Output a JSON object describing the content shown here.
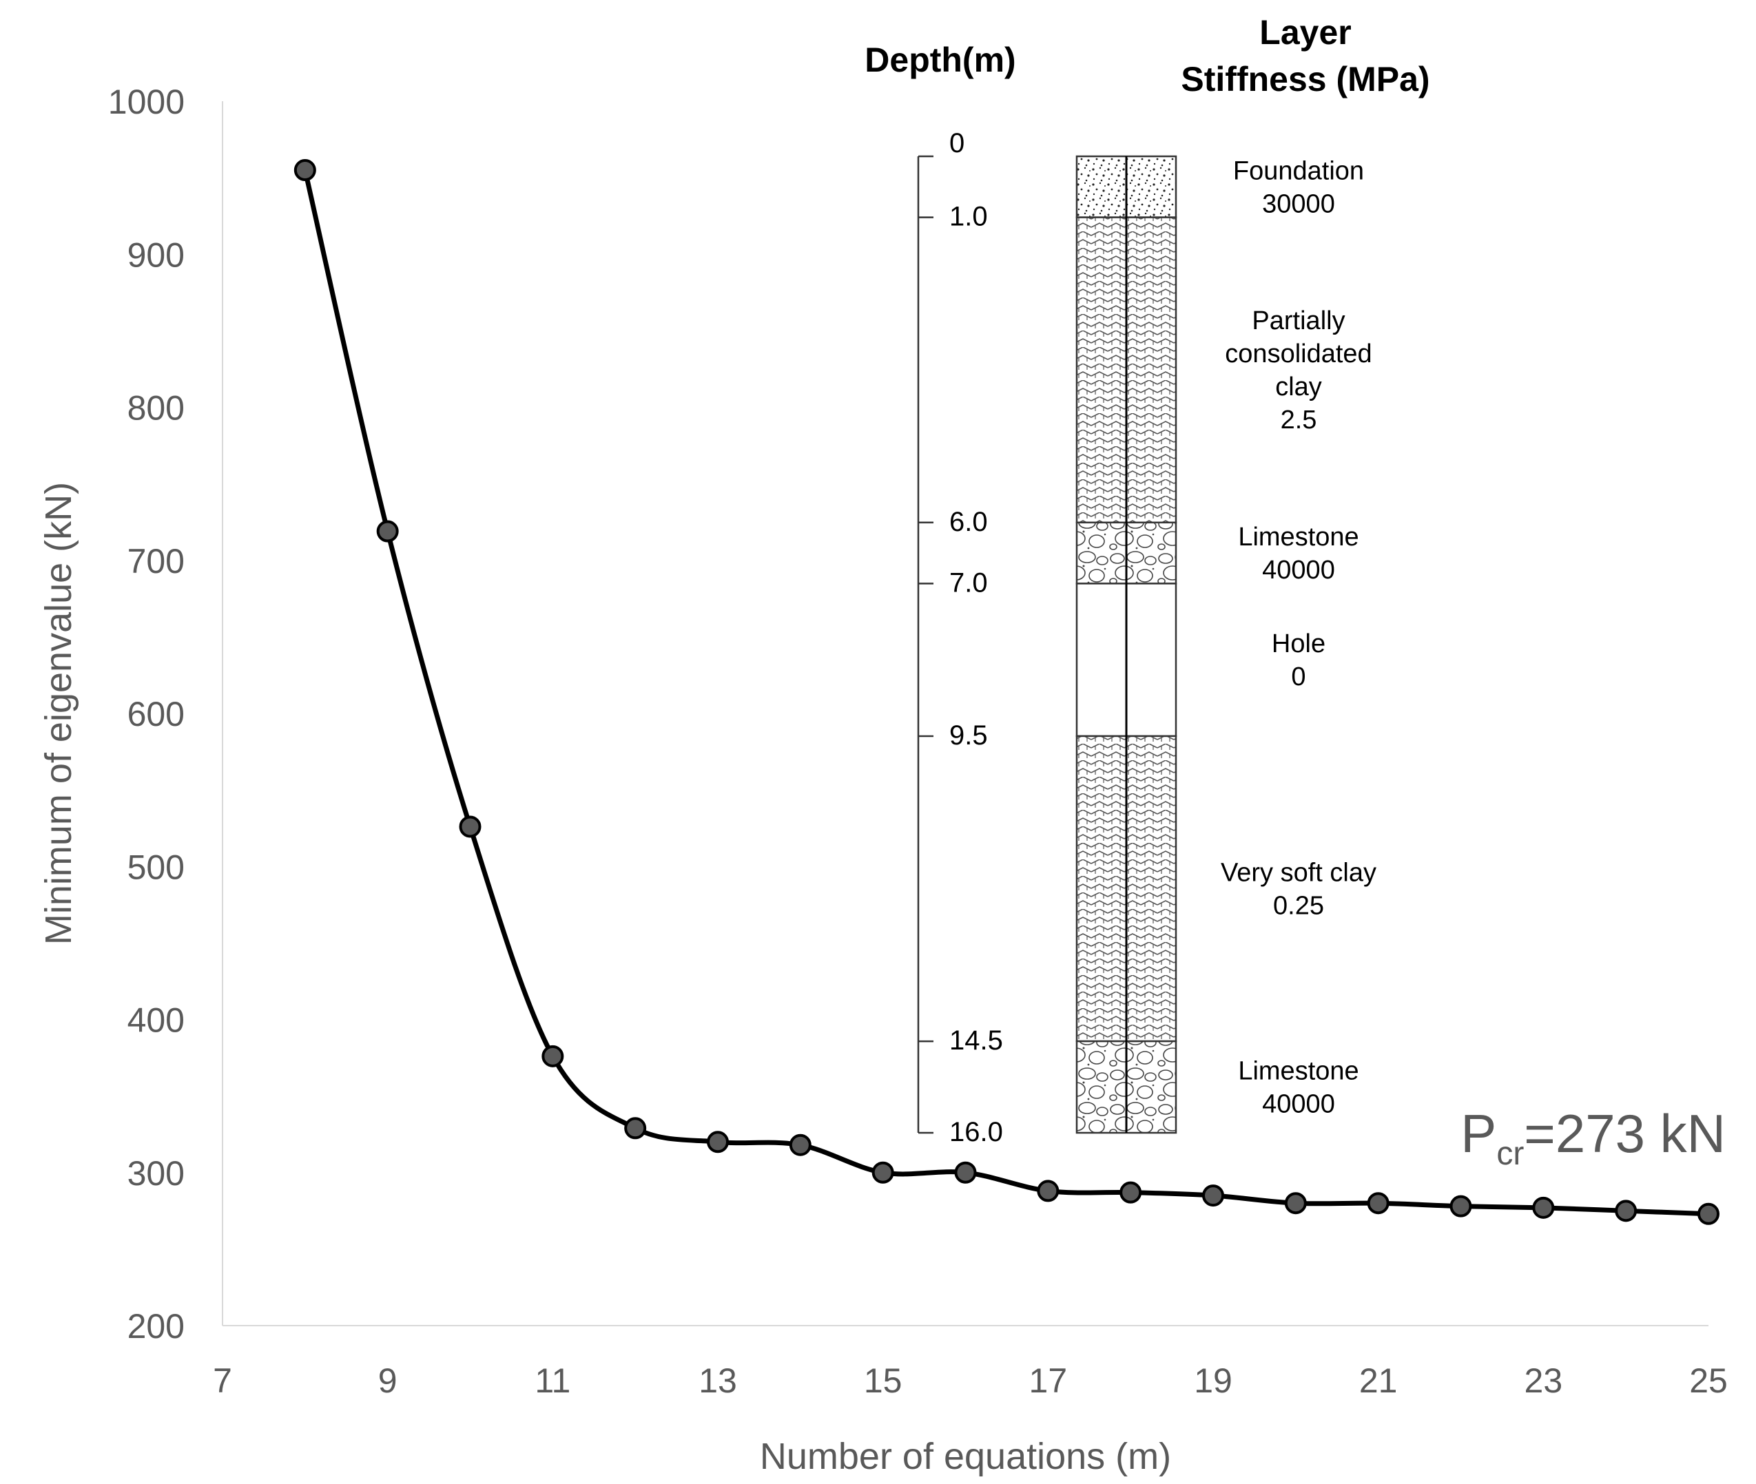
{
  "chart_data": {
    "type": "line",
    "title": "",
    "xlabel": "Number of equations (m)",
    "ylabel": "Minimum of eigenvalue (kN)",
    "xlim": [
      7,
      25
    ],
    "ylim": [
      200,
      1000
    ],
    "xticks": [
      "7",
      "9",
      "11",
      "13",
      "15",
      "17",
      "19",
      "21",
      "23",
      "25"
    ],
    "yticks": [
      "1000",
      "900",
      "800",
      "700",
      "600",
      "500",
      "400",
      "300",
      "200"
    ],
    "grid": false,
    "series": [
      {
        "name": "Minimum of eigenvalue",
        "x": [
          8,
          9,
          10,
          11,
          12,
          13,
          14,
          15,
          16,
          17,
          18,
          19,
          20,
          21,
          22,
          23,
          24,
          25
        ],
        "y": [
          955,
          719,
          526,
          376,
          329,
          320,
          318,
          300,
          300,
          288,
          287,
          285,
          280,
          280,
          278,
          277,
          275,
          273
        ]
      }
    ],
    "annotation": {
      "base": "P",
      "subscript": "cr",
      "value_text": "=273 kN"
    }
  },
  "strata": {
    "depth_header": "Depth(m)",
    "layer_header_line1": "Layer",
    "layer_header_line2": "Stiffness (MPa)",
    "depth_max": 16,
    "depth_ticks": [
      {
        "depth": 0,
        "label": "0"
      },
      {
        "depth": 1,
        "label": "1.0"
      },
      {
        "depth": 6,
        "label": "6.0"
      },
      {
        "depth": 7,
        "label": "7.0"
      },
      {
        "depth": 9.5,
        "label": "9.5"
      },
      {
        "depth": 14.5,
        "label": "14.5"
      },
      {
        "depth": 16,
        "label": "16.0"
      }
    ],
    "layers": [
      {
        "top": 0,
        "bottom": 1,
        "pattern": "dots",
        "lines": [
          "Foundation",
          "30000"
        ]
      },
      {
        "top": 1,
        "bottom": 6,
        "pattern": "herringbone",
        "lines": [
          "Partially",
          "consolidated",
          "clay",
          "2.5"
        ]
      },
      {
        "top": 6,
        "bottom": 7,
        "pattern": "pebbles",
        "lines": [
          "Limestone",
          "40000"
        ]
      },
      {
        "top": 7,
        "bottom": 9.5,
        "pattern": "empty",
        "lines": [
          "Hole",
          "0"
        ]
      },
      {
        "top": 9.5,
        "bottom": 14.5,
        "pattern": "herringbone",
        "lines": [
          "Very soft clay",
          "0.25"
        ]
      },
      {
        "top": 14.5,
        "bottom": 16,
        "pattern": "pebbles",
        "lines": [
          "Limestone",
          "40000"
        ]
      }
    ]
  }
}
